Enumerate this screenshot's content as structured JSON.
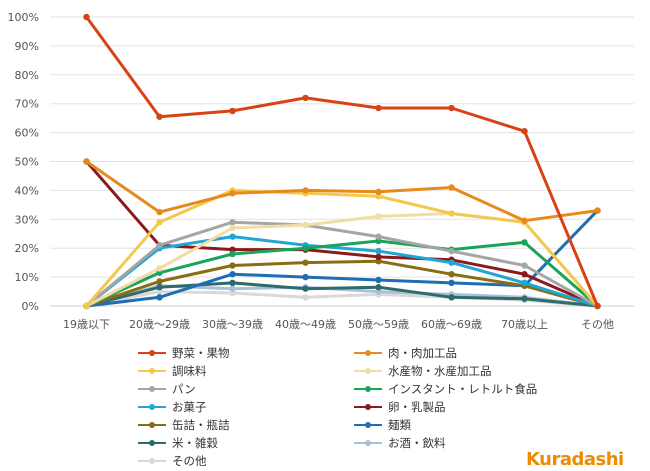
{
  "brand": {
    "name": "Kuradashi",
    "color": "#f08b00"
  },
  "chart_data": {
    "type": "line",
    "title": "",
    "xlabel": "",
    "ylabel": "",
    "ylim": [
      0,
      100
    ],
    "y_ticks": [
      "0%",
      "10%",
      "20%",
      "30%",
      "40%",
      "50%",
      "60%",
      "70%",
      "80%",
      "90%",
      "100%"
    ],
    "grid": true,
    "legend_position": "bottom",
    "categories": [
      "19歳以下",
      "20歳～29歳",
      "30歳～39歳",
      "40歳～49歳",
      "50歳～59歳",
      "60歳～69歳",
      "70歳以上",
      "その他"
    ],
    "series": [
      {
        "name": "野菜・果物",
        "color": "#d84315",
        "values": [
          100,
          65.5,
          67.5,
          72,
          68.5,
          68.5,
          60.5,
          0
        ]
      },
      {
        "name": "肉・肉加工品",
        "color": "#e8891c",
        "values": [
          50,
          32.5,
          39,
          40,
          39.5,
          41,
          29.5,
          33
        ]
      },
      {
        "name": "調味料",
        "color": "#f3c84e",
        "values": [
          0,
          29,
          40,
          39,
          38,
          32,
          29,
          0
        ]
      },
      {
        "name": "水産物・水産加工品",
        "color": "#f2dca6",
        "values": [
          0,
          13,
          27,
          28,
          31,
          32,
          29,
          0
        ]
      },
      {
        "name": "パン",
        "color": "#a5a5a5",
        "values": [
          0,
          21,
          29,
          28,
          24,
          19,
          14,
          0
        ]
      },
      {
        "name": "インスタント・レトルト食品",
        "color": "#1aa35a",
        "values": [
          0,
          11.5,
          18,
          20,
          22.5,
          19.5,
          22,
          0
        ]
      },
      {
        "name": "お菓子",
        "color": "#1fa6d6",
        "values": [
          0,
          20,
          24,
          21,
          19,
          15,
          8,
          0
        ]
      },
      {
        "name": "卵・乳製品",
        "color": "#8b1a1a",
        "values": [
          50,
          21,
          19.5,
          19.5,
          17,
          16,
          11,
          0
        ]
      },
      {
        "name": "缶詰・瓶詰",
        "color": "#8a6d12",
        "values": [
          0,
          8.5,
          14,
          15,
          15.5,
          11,
          7,
          0
        ]
      },
      {
        "name": "麺類",
        "color": "#1f6db3",
        "values": [
          0,
          3,
          11,
          10,
          9,
          8,
          7,
          33
        ]
      },
      {
        "name": "米・雑穀",
        "color": "#2e6b6b",
        "values": [
          0,
          6.5,
          8,
          6,
          6.5,
          3,
          2.5,
          0
        ]
      },
      {
        "name": "お酒・飲料",
        "color": "#a9bfdc",
        "values": [
          0,
          7,
          6,
          6.5,
          5,
          4,
          3,
          0
        ]
      },
      {
        "name": "その他",
        "color": "#d9d9d9",
        "values": [
          0,
          5,
          4.5,
          3,
          4,
          3,
          2,
          0
        ]
      }
    ]
  }
}
